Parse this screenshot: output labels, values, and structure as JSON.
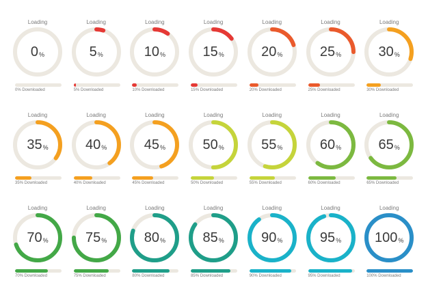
{
  "loading_label": "Loading",
  "percent_symbol": "%",
  "colors": {
    "track": "#ece8e0",
    "red": "#e53935",
    "orange": "#ef7d2a",
    "orange_light": "#f4a020",
    "yellowgreen": "#c5d43b",
    "green_light": "#7cb940",
    "green": "#43a847",
    "teal": "#1f9e89",
    "cyan": "#1ab2c9",
    "blue": "#2a8fc8"
  },
  "items": [
    {
      "value": 0,
      "label": "0",
      "downloaded": "0% Downloaded",
      "color": "#e53935"
    },
    {
      "value": 5,
      "label": "5",
      "downloaded": "5% Downloaded",
      "color": "#e53935"
    },
    {
      "value": 10,
      "label": "10",
      "downloaded": "10% Downloaded",
      "color": "#e53935"
    },
    {
      "value": 15,
      "label": "15",
      "downloaded": "15% Downloaded",
      "color": "#e53935"
    },
    {
      "value": 20,
      "label": "20",
      "downloaded": "20% Downloaded",
      "color": "#ea5a2c"
    },
    {
      "value": 25,
      "label": "25",
      "downloaded": "25% Downloaded",
      "color": "#ea5a2c"
    },
    {
      "value": 30,
      "label": "30",
      "downloaded": "30% Downloaded",
      "color": "#f4a020"
    },
    {
      "value": 35,
      "label": "35",
      "downloaded": "35% Downloaded",
      "color": "#f4a020"
    },
    {
      "value": 40,
      "label": "40",
      "downloaded": "40% Downloaded",
      "color": "#f4a020"
    },
    {
      "value": 45,
      "label": "45",
      "downloaded": "45% Downloaded",
      "color": "#f4a020"
    },
    {
      "value": 50,
      "label": "50",
      "downloaded": "50% Downloaded",
      "color": "#c5d43b"
    },
    {
      "value": 55,
      "label": "55",
      "downloaded": "55% Downloaded",
      "color": "#c5d43b"
    },
    {
      "value": 60,
      "label": "60",
      "downloaded": "60% Downloaded",
      "color": "#7cb940"
    },
    {
      "value": 65,
      "label": "65",
      "downloaded": "65% Downloaded",
      "color": "#7cb940"
    },
    {
      "value": 70,
      "label": "70",
      "downloaded": "70% Downloaded",
      "color": "#43a847"
    },
    {
      "value": 75,
      "label": "75",
      "downloaded": "75% Downloaded",
      "color": "#43a847"
    },
    {
      "value": 80,
      "label": "80",
      "downloaded": "80% Downloaded",
      "color": "#1f9e89"
    },
    {
      "value": 85,
      "label": "85",
      "downloaded": "85% Downloaded",
      "color": "#1f9e89"
    },
    {
      "value": 90,
      "label": "90",
      "downloaded": "90% Downloaded",
      "color": "#1ab2c9"
    },
    {
      "value": 95,
      "label": "95",
      "downloaded": "95% Downloaded",
      "color": "#1ab2c9"
    },
    {
      "value": 100,
      "label": "100",
      "downloaded": "100% Downloaded",
      "color": "#2a8fc8"
    }
  ]
}
